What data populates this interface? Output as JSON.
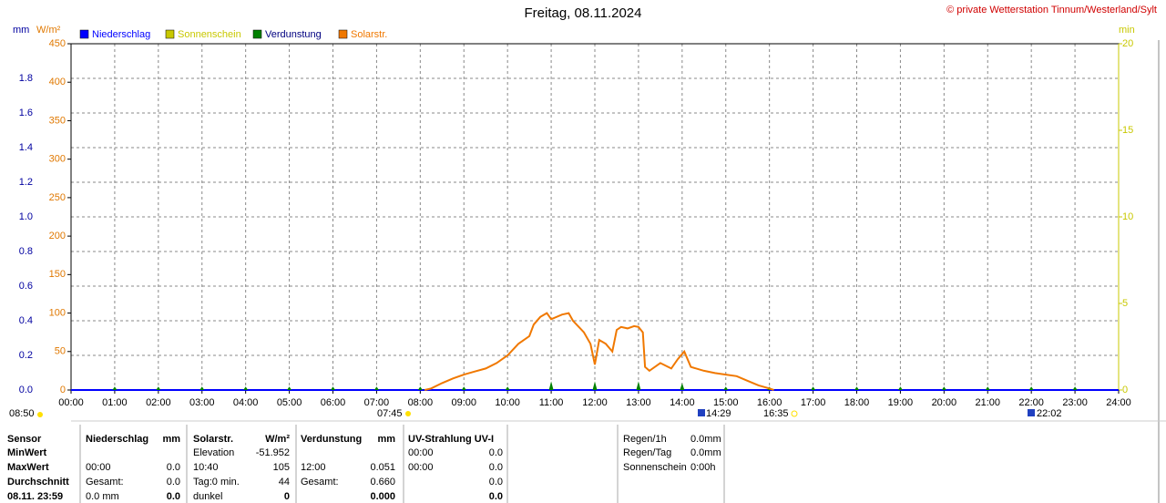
{
  "chart_data": {
    "type": "line",
    "title": "Freitag, 08.11.2024",
    "subtitle": "© private Wetterstation Tinnum/Westerland/Sylt",
    "xlim": [
      0,
      24
    ],
    "xticks": [
      {
        "value": 0,
        "label": "00:00"
      },
      {
        "value": 1,
        "label": "01:00"
      },
      {
        "value": 2,
        "label": "02:00"
      },
      {
        "value": 3,
        "label": "03:00"
      },
      {
        "value": 4,
        "label": "04:00"
      },
      {
        "value": 5,
        "label": "05:00"
      },
      {
        "value": 6,
        "label": "06:00"
      },
      {
        "value": 7,
        "label": "07:00"
      },
      {
        "value": 8,
        "label": "08:00"
      },
      {
        "value": 9,
        "label": "09:00"
      },
      {
        "value": 10,
        "label": "10:00"
      },
      {
        "value": 11,
        "label": "11:00"
      },
      {
        "value": 12,
        "label": "12:00"
      },
      {
        "value": 13,
        "label": "13:00"
      },
      {
        "value": 14,
        "label": "14:00"
      },
      {
        "value": 15,
        "label": "15:00"
      },
      {
        "value": 16,
        "label": "16:00"
      },
      {
        "value": 17,
        "label": "17:00"
      },
      {
        "value": 18,
        "label": "18:00"
      },
      {
        "value": 19,
        "label": "19:00"
      },
      {
        "value": 20,
        "label": "20:00"
      },
      {
        "value": 21,
        "label": "21:00"
      },
      {
        "value": 22,
        "label": "22:00"
      },
      {
        "value": 23,
        "label": "23:00"
      },
      {
        "value": 24,
        "label": "24:00"
      }
    ],
    "grid": true,
    "axes": [
      {
        "label": "mm",
        "color": "#0000a0",
        "lim": [
          0,
          2
        ],
        "ticks": [
          {
            "value": 0,
            "label": "0.0"
          },
          0.2,
          0.4,
          0.6,
          0.8,
          {
            "value": 1,
            "label": "1.0"
          },
          1.2,
          1.4,
          1.6,
          1.8
        ]
      },
      {
        "label": "W/m²",
        "color": "#e07800",
        "lim": [
          0,
          450
        ],
        "ticks": [
          0,
          50,
          100,
          150,
          200,
          250,
          300,
          350,
          400,
          450
        ]
      },
      {
        "label": "min",
        "color": "#c8c800",
        "lim": [
          0,
          20
        ],
        "ticks": [
          0,
          5,
          10,
          15,
          20
        ]
      }
    ],
    "series": [
      {
        "name": "Niederschlag",
        "color": "#0000ff",
        "axis": 0,
        "x": [],
        "values": []
      },
      {
        "name": "Sonnenschein",
        "color": "#c8c800",
        "axis": 2,
        "x": [],
        "values": []
      },
      {
        "name": "Verdunstung",
        "color": "#008000",
        "axis": 0,
        "marker": "triangle",
        "x": [
          1,
          2,
          3,
          4,
          5,
          6,
          7,
          8,
          9,
          10,
          11,
          12,
          13,
          14,
          15,
          16,
          17,
          18,
          19,
          20,
          21,
          22,
          23
        ],
        "values": [
          0.02,
          0.02,
          0.02,
          0.02,
          0.02,
          0.02,
          0.02,
          0.02,
          0.02,
          0.02,
          0.05,
          0.05,
          0.05,
          0.04,
          0.02,
          0.02,
          0.02,
          0.02,
          0.02,
          0.02,
          0.02,
          0.02,
          0.02
        ]
      },
      {
        "name": "Solarstr.",
        "color": "#f07800",
        "axis": 1,
        "x": [
          8.1,
          8.25,
          8.5,
          8.75,
          9,
          9.25,
          9.5,
          9.75,
          10,
          10.25,
          10.5,
          10.6,
          10.75,
          10.9,
          11,
          11.25,
          11.4,
          11.5,
          11.75,
          11.9,
          12,
          12.1,
          12.25,
          12.4,
          12.5,
          12.6,
          12.75,
          12.9,
          13,
          13.1,
          13.15,
          13.25,
          13.5,
          13.75,
          13.9,
          14.05,
          14.2,
          14.5,
          14.75,
          15,
          15.25,
          15.5,
          15.75,
          16,
          16.1
        ],
        "values": [
          0,
          2,
          9,
          15,
          20,
          24,
          28,
          35,
          45,
          60,
          70,
          85,
          95,
          100,
          92,
          98,
          100,
          90,
          75,
          60,
          33,
          65,
          60,
          50,
          78,
          82,
          80,
          83,
          82,
          75,
          30,
          25,
          35,
          28,
          40,
          50,
          30,
          25,
          22,
          20,
          18,
          12,
          6,
          2,
          0
        ]
      }
    ],
    "annotations": [
      "08:50",
      "07:45",
      "14:29",
      "16:35",
      "22:02"
    ]
  },
  "table": {
    "rows": [
      [
        "Sensor",
        "Niederschlag",
        "mm",
        "Solarstr.",
        "W/m²",
        "Verdunstung",
        "mm",
        "UV-Strahlung UV-I",
        null,
        "Regen/1h",
        "0.0mm"
      ],
      [
        "MinWert",
        null,
        null,
        "Elevation",
        "-51.952",
        null,
        null,
        "00:00",
        "0.0",
        "Regen/Tag",
        "0.0mm"
      ],
      [
        "MaxWert",
        "00:00",
        "0.0",
        "10:40",
        "105",
        "12:00",
        "0.051",
        "00:00",
        "0.0",
        "Sonnenschein",
        "0:00h"
      ],
      [
        "Durchschnitt",
        "Gesamt:",
        "0.0",
        "Tag:0 min.",
        "44",
        "Gesamt:",
        "0.660",
        null,
        "0.0",
        null,
        null
      ],
      [
        "08.11. 23:59",
        "0.0 mm",
        "0.0",
        "dunkel",
        "0",
        null,
        "0.000",
        null,
        "0.0",
        null,
        null
      ]
    ]
  }
}
